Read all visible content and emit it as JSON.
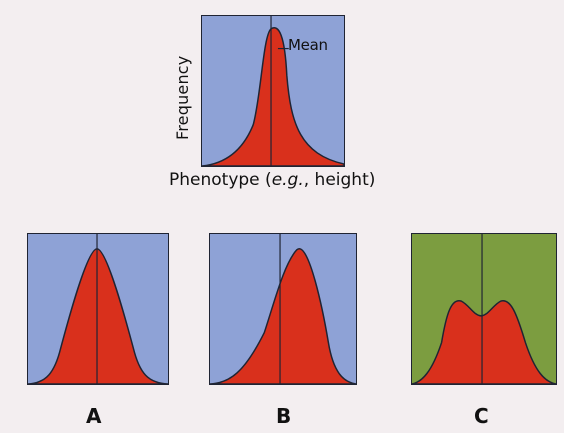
{
  "top": {
    "y_label": "Frequency",
    "x_label_start": "Phenotype (",
    "x_label_eg": "e.g.",
    "x_label_end": ", height)",
    "mean_label": "Mean"
  },
  "panels": [
    {
      "label": "A",
      "color": "blue"
    },
    {
      "label": "B",
      "color": "blue"
    },
    {
      "label": "C",
      "color": "green"
    }
  ],
  "colors": {
    "blue_background": "#8ea2d6",
    "green_background": "#7c9d40",
    "curve_fill": "#d9301c",
    "outline": "#1f2433"
  }
}
